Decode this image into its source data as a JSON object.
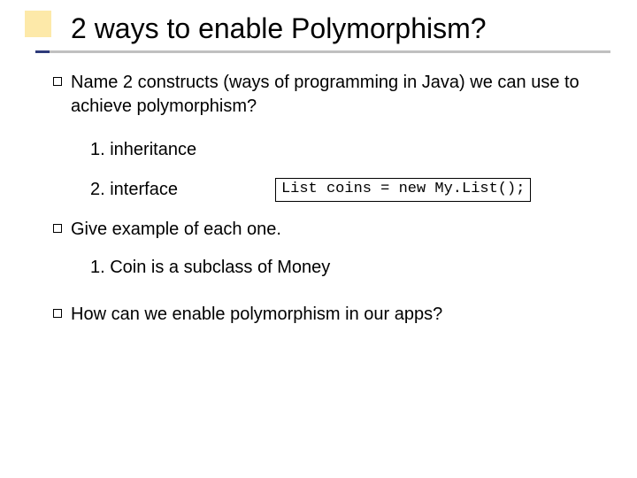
{
  "accent_color": "#fde9a9",
  "underline_grey": "#c0c0c0",
  "underline_navy": "#2e3a7a",
  "title": "2 ways to enable Polymorphism?",
  "q1": "Name 2 constructs (ways of programming in Java) we can use to achieve polymorphism?",
  "q1_a1": "1. inheritance",
  "q1_a2": "2. interface",
  "code": "List coins = new My.List();",
  "q2": "Give example of each one.",
  "q2_a1": "1.  Coin is a subclass of Money",
  "q3": "How can we enable polymorphism in our apps?"
}
